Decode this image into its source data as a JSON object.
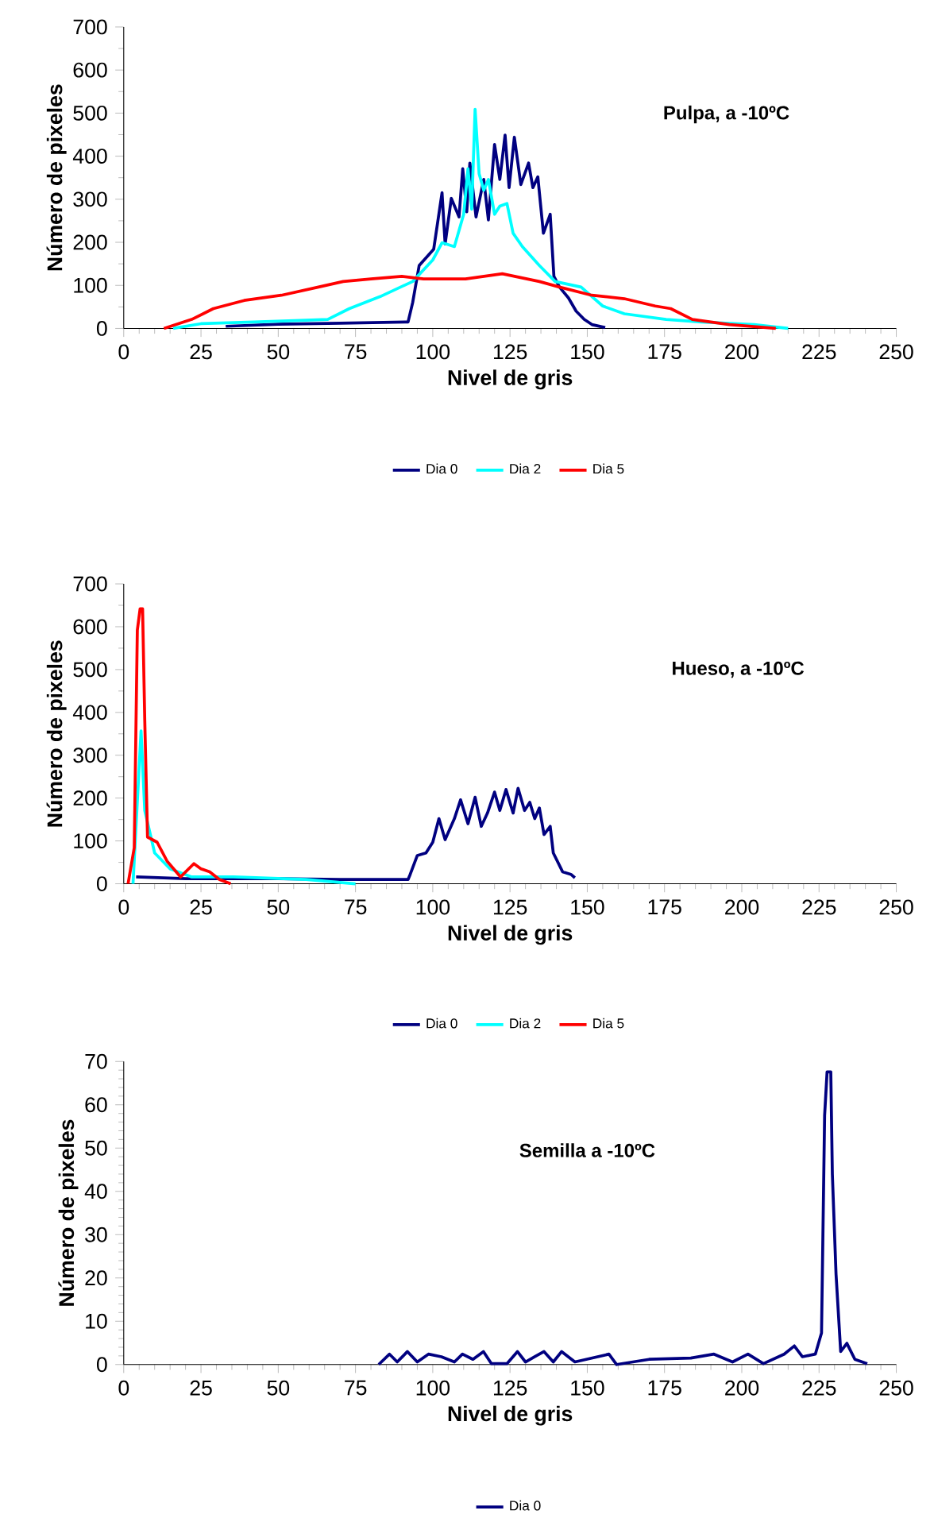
{
  "chart_data": [
    {
      "type": "line",
      "title": "Pulpa, a -10ºC",
      "xlabel": "Nivel de gris",
      "ylabel": "Número de pixeles",
      "xlim": [
        0,
        250
      ],
      "ylim": [
        0,
        700
      ],
      "xticks": [
        0,
        25,
        50,
        75,
        100,
        125,
        150,
        175,
        200,
        225,
        250
      ],
      "yticks": [
        0,
        100,
        200,
        300,
        400,
        500,
        600,
        700
      ],
      "legend": "bottom",
      "marker": "none",
      "line_style": "solid",
      "series": [
        {
          "name": "Dia 0",
          "color": "#000080",
          "x": [
            33,
            50,
            70,
            92,
            93.5,
            95.6,
            100.3,
            103,
            104,
            106,
            108.5,
            109.7,
            111,
            112,
            114,
            116.5,
            118,
            120,
            121.7,
            123.4,
            124.7,
            126.4,
            128.5,
            131,
            132.4,
            134,
            135.8,
            138,
            139.2,
            141,
            143.9,
            146.4,
            149,
            151.5,
            155.8
          ],
          "values": [
            5,
            10,
            12,
            15,
            60,
            146,
            184,
            315,
            196,
            302,
            259,
            371,
            271,
            384,
            259,
            346,
            252,
            427,
            346,
            449,
            327,
            444,
            334,
            384,
            327,
            352,
            221,
            265,
            121,
            96,
            71,
            40,
            21,
            9,
            2
          ]
        },
        {
          "name": "Dia 2",
          "color": "#00ffff",
          "x": [
            16,
            25,
            42,
            59,
            66,
            73,
            83,
            93.5,
            100,
            103,
            107,
            110,
            111.4,
            112.6,
            113.7,
            115,
            116.5,
            118,
            120,
            121.7,
            124,
            126,
            129,
            134.5,
            139.6,
            148,
            155,
            162,
            175.5,
            187,
            204,
            215
          ],
          "values": [
            0,
            11,
            15,
            19,
            21,
            46,
            74,
            109,
            159,
            199,
            190,
            265,
            371,
            277,
            509,
            359,
            321,
            346,
            265,
            284,
            290,
            221,
            190,
            146,
            109,
            96,
            52,
            34,
            21,
            15,
            9,
            0
          ]
        },
        {
          "name": "Dia 5",
          "color": "#ff0000",
          "x": [
            13,
            22,
            29,
            39,
            51,
            63,
            71,
            80,
            90,
            97,
            110.6,
            122.5,
            134.5,
            141,
            151.5,
            162,
            172,
            177,
            184,
            196,
            211
          ],
          "values": [
            0,
            21,
            46,
            65,
            77,
            96,
            109,
            115,
            121,
            115,
            115,
            127,
            109,
            96,
            77,
            69,
            52,
            46,
            21,
            9,
            0
          ]
        }
      ]
    },
    {
      "type": "line",
      "title": "Hueso, a -10ºC",
      "xlabel": "Nivel de gris",
      "ylabel": "Número de pixeles",
      "xlim": [
        0,
        250
      ],
      "ylim": [
        0,
        700
      ],
      "xticks": [
        0,
        25,
        50,
        75,
        100,
        125,
        150,
        175,
        200,
        225,
        250
      ],
      "yticks": [
        0,
        100,
        200,
        300,
        400,
        500,
        600,
        700
      ],
      "legend": "bottom",
      "marker": "none",
      "line_style": "solid",
      "series": [
        {
          "name": "Dia 0",
          "color": "#000080",
          "x": [
            4,
            20,
            33,
            50,
            70,
            92,
            92.7,
            95,
            97.8,
            100,
            102,
            104,
            107,
            109,
            111.4,
            113.7,
            115.7,
            117.7,
            120,
            121.7,
            123.7,
            126,
            127.6,
            129.7,
            131.4,
            133,
            134.5,
            136,
            138,
            139,
            142,
            144.7,
            146
          ],
          "values": [
            16,
            12,
            null,
            12,
            10,
            10,
            22,
            66,
            72,
            97,
            152,
            103,
            152,
            196,
            140,
            202,
            134,
            165,
            214,
            171,
            220,
            165,
            223,
            171,
            190,
            152,
            177,
            115,
            134,
            72,
            28,
            22,
            14
          ]
        },
        {
          "name": "Dia 2",
          "color": "#00ffff",
          "x": [
            3,
            5.6,
            6.8,
            10,
            15,
            22,
            35.5,
            59,
            75
          ],
          "values": [
            0,
            357,
            171,
            72,
            35,
            16,
            16,
            10,
            0
          ]
        },
        {
          "name": "Dia 5",
          "color": "#ff0000",
          "x": [
            1.4,
            3.4,
            4.4,
            5.3,
            6.1,
            6.8,
            7.7,
            10.8,
            14,
            18.4,
            22.7,
            25,
            27.8,
            31,
            34.6
          ],
          "values": [
            0,
            84,
            592,
            642,
            642,
            382,
            109,
            97,
            53,
            16,
            47,
            35,
            28,
            10,
            0
          ]
        }
      ]
    },
    {
      "type": "line",
      "title": "Semilla a -10ºC",
      "xlabel": "Nivel de gris",
      "ylabel": "Número de pixeles",
      "xlim": [
        0,
        250
      ],
      "ylim": [
        0,
        70
      ],
      "xticks": [
        0,
        25,
        50,
        75,
        100,
        125,
        150,
        175,
        200,
        225,
        250
      ],
      "yticks": [
        0,
        10,
        20,
        30,
        40,
        50,
        60,
        70
      ],
      "legend": "bottom",
      "marker": "none",
      "line_style": "solid",
      "series": [
        {
          "name": "Dia 0",
          "color": "#000080",
          "x": [
            82.5,
            86,
            88.5,
            91.8,
            95,
            98.6,
            102.8,
            107,
            109.6,
            113,
            116.4,
            119,
            124,
            127.4,
            130,
            133,
            136,
            139,
            141.7,
            146,
            157,
            159.5,
            170,
            183.5,
            191,
            197,
            202,
            207,
            213.7,
            217,
            219.6,
            223.8,
            225.8,
            226.8,
            227.6,
            228.8,
            229.3,
            230.5,
            232,
            234,
            236.6,
            240.6
          ],
          "values": [
            0,
            2.4,
            0.6,
            3,
            0.6,
            2.4,
            1.8,
            0.6,
            2.4,
            1.2,
            3,
            0.2,
            0.2,
            3,
            0.6,
            1.8,
            3,
            0.6,
            3,
            0.6,
            2.4,
            0,
            1.2,
            1.5,
            2.4,
            0.6,
            2.4,
            0.2,
            2.4,
            4.3,
            1.8,
            2.4,
            7.3,
            57.5,
            67.6,
            67.6,
            44,
            20.8,
            3,
            4.9,
            1.2,
            0.2
          ]
        }
      ]
    }
  ]
}
